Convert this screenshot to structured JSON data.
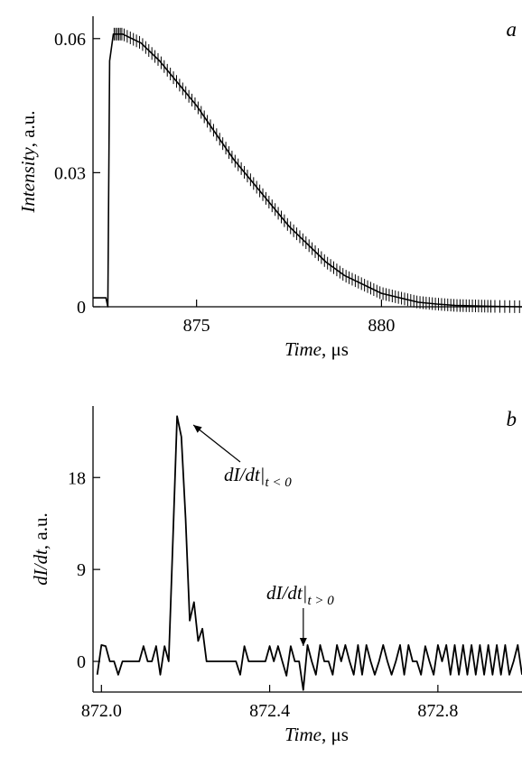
{
  "chart_data": [
    {
      "type": "line",
      "panel_label": "a",
      "xlabel_italic": "Time",
      "xlabel_unit": ", μs",
      "ylabel_italic": "Intensity",
      "ylabel_unit": ", a.u.",
      "xlim": [
        872.2,
        883.8
      ],
      "ylim": [
        0,
        0.065
      ],
      "xticks": [
        875,
        880
      ],
      "xtick_labels": [
        "875",
        "880"
      ],
      "yticks": [
        0,
        0.03,
        0.06
      ],
      "ytick_labels": [
        "0",
        "0.03",
        "0.06"
      ],
      "series": [
        {
          "x": [
            872.2,
            872.55,
            872.6,
            872.65,
            872.75,
            873.0,
            873.5,
            874.0,
            874.5,
            875.0,
            875.5,
            876.0,
            876.5,
            877.0,
            877.5,
            878.0,
            878.5,
            879.0,
            879.5,
            880.0,
            880.5,
            881.0,
            881.5,
            882.0,
            882.5,
            883.0,
            883.8
          ],
          "y": [
            0.002,
            0.002,
            0.0,
            0.055,
            0.061,
            0.061,
            0.059,
            0.055,
            0.05,
            0.045,
            0.039,
            0.033,
            0.028,
            0.023,
            0.018,
            0.014,
            0.01,
            0.007,
            0.005,
            0.003,
            0.002,
            0.001,
            0.0006,
            0.0003,
            0.0002,
            0.0001,
            0.0
          ]
        }
      ]
    },
    {
      "type": "line",
      "panel_label": "b",
      "xlabel_italic": "Time",
      "xlabel_unit": ", μs",
      "ylabel_italic": "dI/dt",
      "ylabel_unit": ", a.u.",
      "xlim": [
        871.98,
        873.0
      ],
      "ylim": [
        -3,
        25
      ],
      "xticks": [
        872.0,
        872.4,
        872.8
      ],
      "xtick_labels": [
        "872.0",
        "872.4",
        "872.8"
      ],
      "yticks": [
        0,
        9,
        18
      ],
      "ytick_labels": [
        "0",
        "9",
        "18"
      ],
      "annotations": [
        {
          "text_main": "dI/dt|",
          "text_sub": "t < 0",
          "x": 872.21,
          "y": 23.5
        },
        {
          "text_main": "dI/dt|",
          "text_sub": "t > 0",
          "x": 872.48,
          "y": 0.8
        }
      ],
      "series": [
        {
          "x": [
            871.99,
            872.0,
            872.01,
            872.02,
            872.03,
            872.04,
            872.05,
            872.06,
            872.07,
            872.08,
            872.09,
            872.1,
            872.11,
            872.12,
            872.13,
            872.14,
            872.15,
            872.16,
            872.17,
            872.18,
            872.19,
            872.2,
            872.21,
            872.22,
            872.23,
            872.24,
            872.25,
            872.26,
            872.27,
            872.28,
            872.29,
            872.3,
            872.31,
            872.32,
            872.33,
            872.34,
            872.35,
            872.36,
            872.37,
            872.38,
            872.39,
            872.4,
            872.41,
            872.42,
            872.43,
            872.44,
            872.45,
            872.46,
            872.47,
            872.48,
            872.49,
            872.5,
            872.51,
            872.52,
            872.53,
            872.54,
            872.55,
            872.56,
            872.57,
            872.58,
            872.59,
            872.6,
            872.61,
            872.62,
            872.63,
            872.64,
            872.65,
            872.66,
            872.67,
            872.68,
            872.69,
            872.7,
            872.71,
            872.72,
            872.73,
            872.74,
            872.75,
            872.76,
            872.77,
            872.78,
            872.79,
            872.8,
            872.81,
            872.82,
            872.83,
            872.84,
            872.85,
            872.86,
            872.87,
            872.88,
            872.89,
            872.9,
            872.91,
            872.92,
            872.93,
            872.94,
            872.95,
            872.96,
            872.97,
            872.98,
            872.99,
            873.0
          ],
          "y": [
            -1.3,
            1.6,
            1.5,
            0,
            0,
            -1.3,
            0,
            0,
            0,
            0,
            0,
            1.5,
            0,
            0,
            1.5,
            -1.3,
            1.5,
            0,
            12,
            24,
            22,
            14,
            4,
            5.8,
            2,
            3.2,
            0,
            0,
            0,
            0,
            0,
            0,
            0,
            0,
            -1.3,
            1.5,
            0,
            0,
            0,
            0,
            0,
            1.5,
            0,
            1.5,
            0,
            -1.4,
            1.5,
            0,
            0,
            -2.8,
            1.6,
            0,
            -1.3,
            1.6,
            0,
            0,
            -1.3,
            1.6,
            0,
            1.6,
            0,
            -1.3,
            1.6,
            -1.3,
            1.6,
            0,
            -1.3,
            0,
            1.6,
            0,
            -1.3,
            0,
            1.6,
            -1.3,
            1.6,
            0,
            0,
            -1.3,
            1.5,
            0,
            -1.3,
            1.6,
            0,
            1.6,
            -1.3,
            1.6,
            -1.3,
            1.6,
            -1.3,
            1.6,
            -1.3,
            1.6,
            -1.3,
            1.6,
            -1.3,
            1.6,
            -1.3,
            1.6,
            -1.3,
            0,
            1.6,
            -1.3
          ]
        }
      ]
    }
  ]
}
